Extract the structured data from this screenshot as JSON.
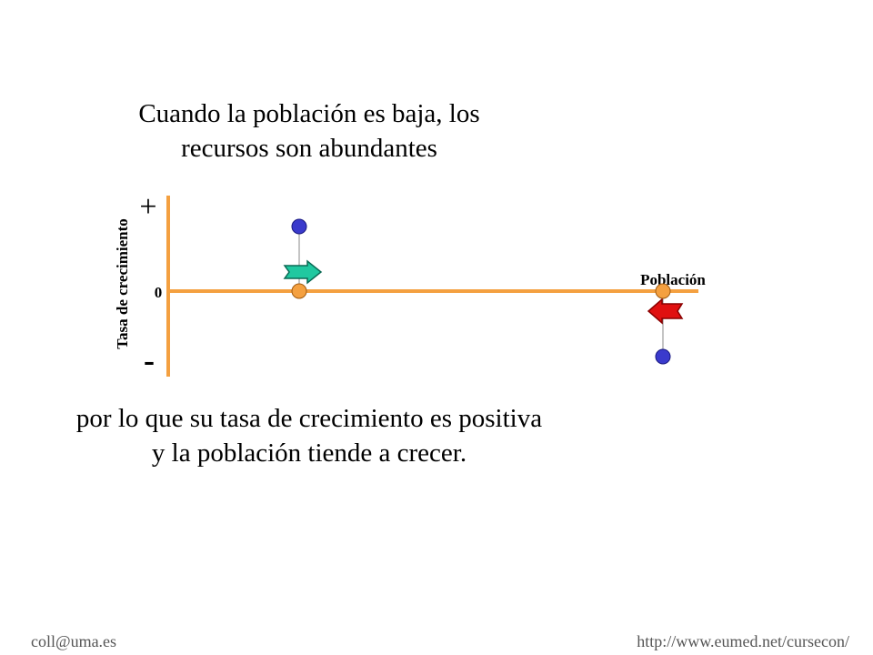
{
  "top_text": {
    "line1": "Cuando la población es baja, los",
    "line2": "recursos son abundantes"
  },
  "bottom_text": {
    "line1": "por lo que su tasa de crecimiento es positiva",
    "line2": "y la población tiende a crecer."
  },
  "axes": {
    "y_label": "Tasa de crecimiento",
    "x_label": "Población",
    "plus_label": "+",
    "minus_label": "-",
    "zero_label": "0"
  },
  "footer": {
    "left": "coll@uma.es",
    "right": "http://www.eumed.net/cursecon/"
  },
  "colors": {
    "axis": "#f4a040",
    "point_growth": "#3a3acc",
    "point_population": "#f4a040",
    "arrow_right": "#20c8a0",
    "arrow_left": "#e01010"
  }
}
